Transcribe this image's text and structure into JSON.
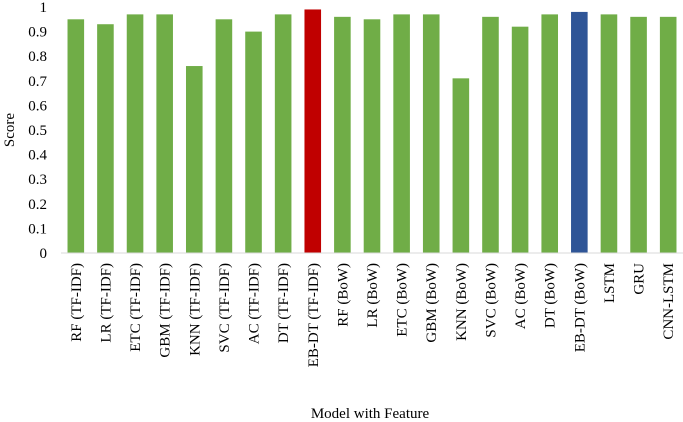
{
  "chart_data": {
    "type": "bar",
    "x_label": "Model with Feature",
    "y_label": "Score",
    "categories": [
      "RF (TF-IDF)",
      "LR (TF-IDF)",
      "ETC (TF-IDF)",
      "GBM (TF-IDF)",
      "KNN (TF-IDF)",
      "SVC (TF-IDF)",
      "AC (TF-IDF)",
      "DT (TF-IDF)",
      "EB-DT (TF-IDF)",
      "RF (BoW)",
      "LR (BoW)",
      "ETC (BoW)",
      "GBM (BoW)",
      "KNN (BoW)",
      "SVC (BoW)",
      "AC (BoW)",
      "DT (BoW)",
      "EB-DT (BoW)",
      "LSTM",
      "GRU",
      "CNN-LSTM"
    ],
    "values": [
      0.95,
      0.93,
      0.97,
      0.97,
      0.76,
      0.95,
      0.9,
      0.97,
      0.99,
      0.96,
      0.95,
      0.97,
      0.97,
      0.71,
      0.96,
      0.92,
      0.97,
      0.98,
      0.97,
      0.96,
      0.96
    ],
    "colors": [
      "#70ad47",
      "#70ad47",
      "#70ad47",
      "#70ad47",
      "#70ad47",
      "#70ad47",
      "#70ad47",
      "#70ad47",
      "#c00000",
      "#70ad47",
      "#70ad47",
      "#70ad47",
      "#70ad47",
      "#70ad47",
      "#70ad47",
      "#70ad47",
      "#70ad47",
      "#2f5597",
      "#70ad47",
      "#70ad47",
      "#70ad47"
    ],
    "ylim": [
      0,
      1
    ],
    "yticks": [
      0,
      0.1,
      0.2,
      0.3,
      0.4,
      0.5,
      0.6,
      0.7,
      0.8,
      0.9,
      1
    ],
    "grid": false
  }
}
